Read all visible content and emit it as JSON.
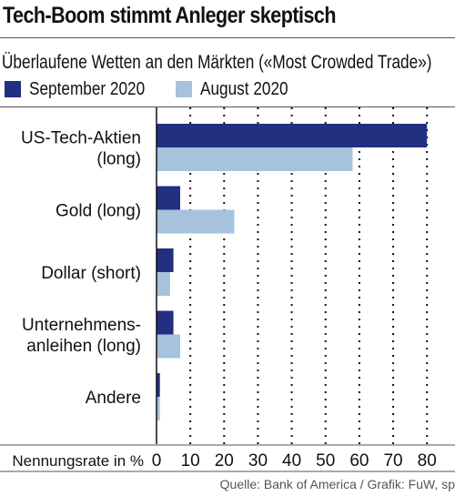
{
  "header": {
    "title": "Tech-Boom stimmt Anleger skeptisch"
  },
  "source": "Quelle: Bank of America / Grafik: FuW, sp",
  "colors": {
    "september": "#232f80",
    "august": "#a6c2dc",
    "grid": "#111111"
  },
  "chart_data": {
    "type": "bar",
    "orientation": "horizontal",
    "subtitle": "Überlaufene Wetten an den Märkten («Most Crowded Trade»)",
    "xlabel": "Nennungsrate in %",
    "xlim": [
      0,
      80
    ],
    "xticks": [
      "0",
      "10",
      "20",
      "30",
      "40",
      "50",
      "60",
      "70",
      "80"
    ],
    "grid": "vertical dotted",
    "legend_placement": "top-left",
    "categories": [
      {
        "lines": [
          "US-Tech-Aktien",
          "(long)"
        ]
      },
      {
        "lines": [
          "Gold (long)"
        ]
      },
      {
        "lines": [
          "Dollar (short)"
        ]
      },
      {
        "lines": [
          "Unternehmens-",
          "anleihen (long)"
        ]
      },
      {
        "lines": [
          "Andere"
        ]
      }
    ],
    "series": [
      {
        "name": "September 2020",
        "color": "#232f80",
        "values": [
          80,
          7,
          5,
          5,
          1
        ]
      },
      {
        "name": "August 2020",
        "color": "#a6c2dc",
        "values": [
          58,
          23,
          4,
          7,
          1
        ]
      }
    ]
  }
}
